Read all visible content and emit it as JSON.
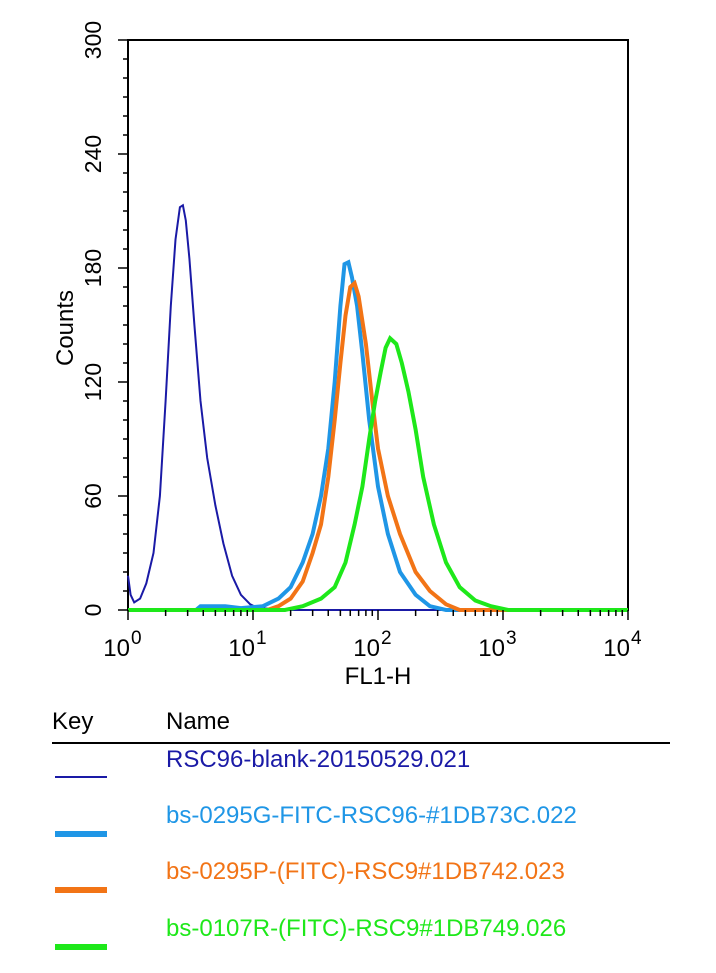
{
  "chart_data": {
    "type": "line",
    "title": "",
    "xlabel": "FL1-H",
    "ylabel": "Counts",
    "x_scale": "log",
    "xlim": [
      1,
      10000
    ],
    "ylim": [
      0,
      300
    ],
    "x_ticks": [
      {
        "value": 1,
        "base": "10",
        "exp": "0"
      },
      {
        "value": 10,
        "base": "10",
        "exp": "1"
      },
      {
        "value": 100,
        "base": "10",
        "exp": "2"
      },
      {
        "value": 1000,
        "base": "10",
        "exp": "3"
      },
      {
        "value": 10000,
        "base": "10",
        "exp": "4"
      }
    ],
    "y_ticks": [
      "0",
      "60",
      "120",
      "180",
      "240",
      "300"
    ],
    "grid": false,
    "series": [
      {
        "name": "RSC96-blank-20150529.021",
        "color": "#1a1aa6",
        "line_weight": "thin",
        "points": [
          [
            1.0,
            18
          ],
          [
            1.05,
            8
          ],
          [
            1.12,
            4
          ],
          [
            1.25,
            6
          ],
          [
            1.4,
            14
          ],
          [
            1.6,
            30
          ],
          [
            1.8,
            60
          ],
          [
            2.0,
            110
          ],
          [
            2.2,
            160
          ],
          [
            2.4,
            195
          ],
          [
            2.6,
            212
          ],
          [
            2.75,
            213
          ],
          [
            2.9,
            205
          ],
          [
            3.1,
            185
          ],
          [
            3.4,
            150
          ],
          [
            3.8,
            110
          ],
          [
            4.3,
            80
          ],
          [
            5.0,
            55
          ],
          [
            5.8,
            35
          ],
          [
            6.8,
            18
          ],
          [
            8.0,
            8
          ],
          [
            9.5,
            3
          ],
          [
            11,
            1
          ],
          [
            20,
            0
          ],
          [
            10000,
            0
          ]
        ]
      },
      {
        "name": "bs-0295G-FITC-RSC96-#1DB73C.022",
        "color": "#1f96e6",
        "line_weight": "thick",
        "points": [
          [
            1.0,
            0
          ],
          [
            3.5,
            0
          ],
          [
            3.8,
            2
          ],
          [
            6,
            2
          ],
          [
            8,
            1
          ],
          [
            12,
            2
          ],
          [
            16,
            6
          ],
          [
            20,
            12
          ],
          [
            25,
            25
          ],
          [
            30,
            40
          ],
          [
            35,
            60
          ],
          [
            40,
            85
          ],
          [
            45,
            120
          ],
          [
            50,
            160
          ],
          [
            54,
            182
          ],
          [
            58,
            183
          ],
          [
            62,
            175
          ],
          [
            68,
            160
          ],
          [
            75,
            135
          ],
          [
            85,
            100
          ],
          [
            100,
            65
          ],
          [
            120,
            40
          ],
          [
            150,
            20
          ],
          [
            200,
            8
          ],
          [
            260,
            2
          ],
          [
            350,
            0
          ],
          [
            10000,
            0
          ]
        ]
      },
      {
        "name": "bs-0295P-(FITC)-RSC9#1DB742.023",
        "color": "#f27416",
        "line_weight": "thick",
        "points": [
          [
            1.0,
            0
          ],
          [
            13,
            0
          ],
          [
            16,
            2
          ],
          [
            20,
            6
          ],
          [
            25,
            15
          ],
          [
            30,
            30
          ],
          [
            35,
            45
          ],
          [
            40,
            70
          ],
          [
            45,
            100
          ],
          [
            50,
            130
          ],
          [
            55,
            155
          ],
          [
            60,
            170
          ],
          [
            65,
            172
          ],
          [
            70,
            165
          ],
          [
            80,
            140
          ],
          [
            90,
            110
          ],
          [
            100,
            85
          ],
          [
            120,
            60
          ],
          [
            150,
            40
          ],
          [
            200,
            20
          ],
          [
            260,
            10
          ],
          [
            350,
            3
          ],
          [
            450,
            0
          ],
          [
            10000,
            0
          ]
        ]
      },
      {
        "name": "bs-0107R-(FITC)-RSC9#1DB749.026",
        "color": "#1ee81a",
        "line_weight": "thick",
        "points": [
          [
            1.0,
            0
          ],
          [
            18,
            0
          ],
          [
            25,
            2
          ],
          [
            35,
            6
          ],
          [
            45,
            12
          ],
          [
            55,
            25
          ],
          [
            65,
            45
          ],
          [
            75,
            65
          ],
          [
            85,
            90
          ],
          [
            95,
            110
          ],
          [
            105,
            125
          ],
          [
            115,
            138
          ],
          [
            125,
            143
          ],
          [
            140,
            140
          ],
          [
            155,
            130
          ],
          [
            175,
            115
          ],
          [
            200,
            95
          ],
          [
            230,
            70
          ],
          [
            280,
            45
          ],
          [
            350,
            25
          ],
          [
            450,
            12
          ],
          [
            600,
            5
          ],
          [
            800,
            2
          ],
          [
            1100,
            0
          ],
          [
            10000,
            0
          ]
        ]
      }
    ]
  },
  "legend": {
    "key_header": "Key",
    "name_header": "Name"
  }
}
